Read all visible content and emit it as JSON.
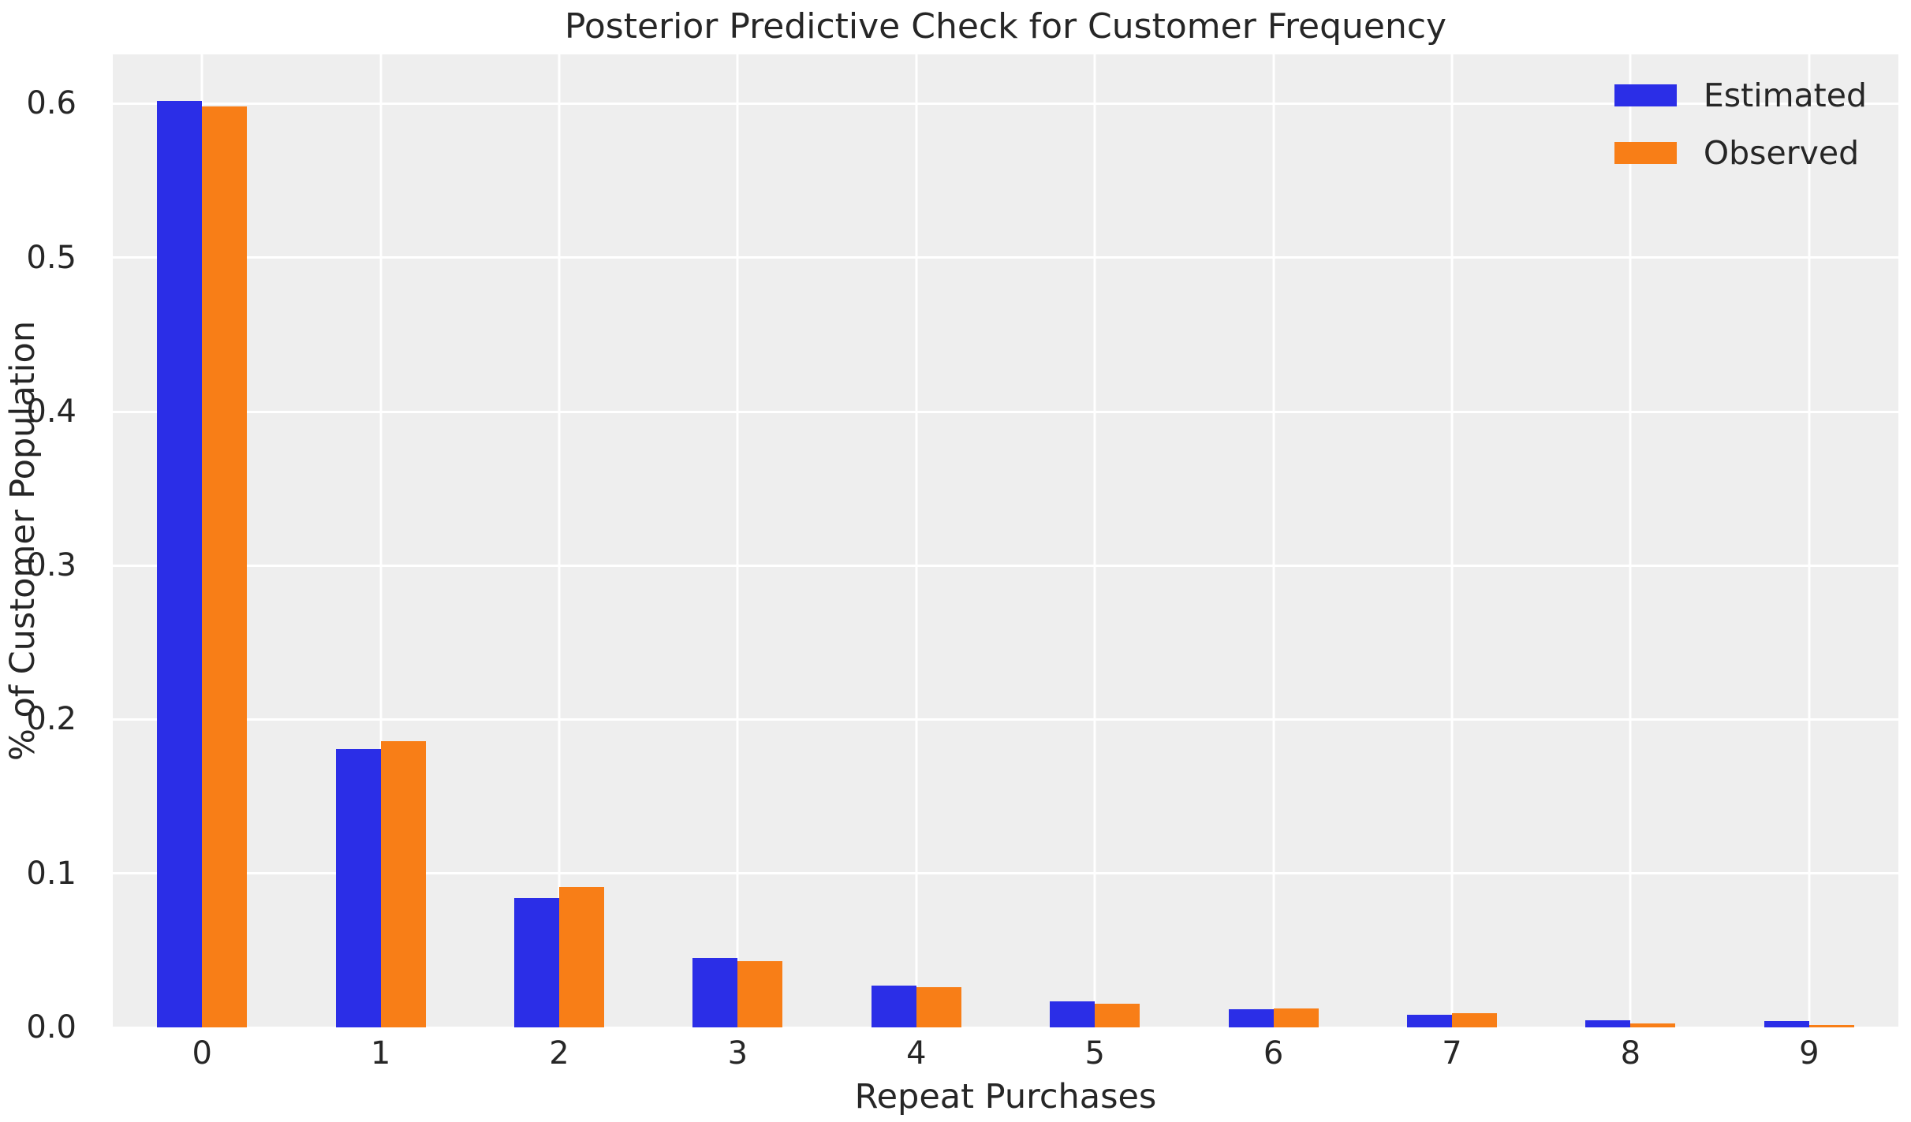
{
  "chart_data": {
    "type": "bar",
    "title": "Posterior Predictive Check for Customer Frequency",
    "xlabel": "Repeat Purchases",
    "ylabel": "% of Customer Population",
    "categories": [
      "0",
      "1",
      "2",
      "3",
      "4",
      "5",
      "6",
      "7",
      "8",
      "9"
    ],
    "series": [
      {
        "name": "Estimated",
        "color": "#2b2ee7",
        "values": [
          0.602,
          0.181,
          0.084,
          0.045,
          0.027,
          0.017,
          0.012,
          0.008,
          0.0046,
          0.004
        ]
      },
      {
        "name": "Observed",
        "color": "#f87e17",
        "values": [
          0.598,
          0.186,
          0.091,
          0.043,
          0.026,
          0.0155,
          0.0125,
          0.009,
          0.0026,
          0.0015
        ]
      }
    ],
    "ytick_labels": [
      "0.0",
      "0.1",
      "0.2",
      "0.3",
      "0.4",
      "0.5",
      "0.6"
    ],
    "yticks": [
      0.0,
      0.1,
      0.2,
      0.3,
      0.4,
      0.5,
      0.6
    ],
    "ylim": [
      0,
      0.632
    ],
    "grid": true,
    "legend_position": "upper right",
    "colors": {
      "plot_background": "#eeeeee",
      "grid": "#ffffff",
      "text": "#262626",
      "figure_background": "#ffffff"
    }
  }
}
